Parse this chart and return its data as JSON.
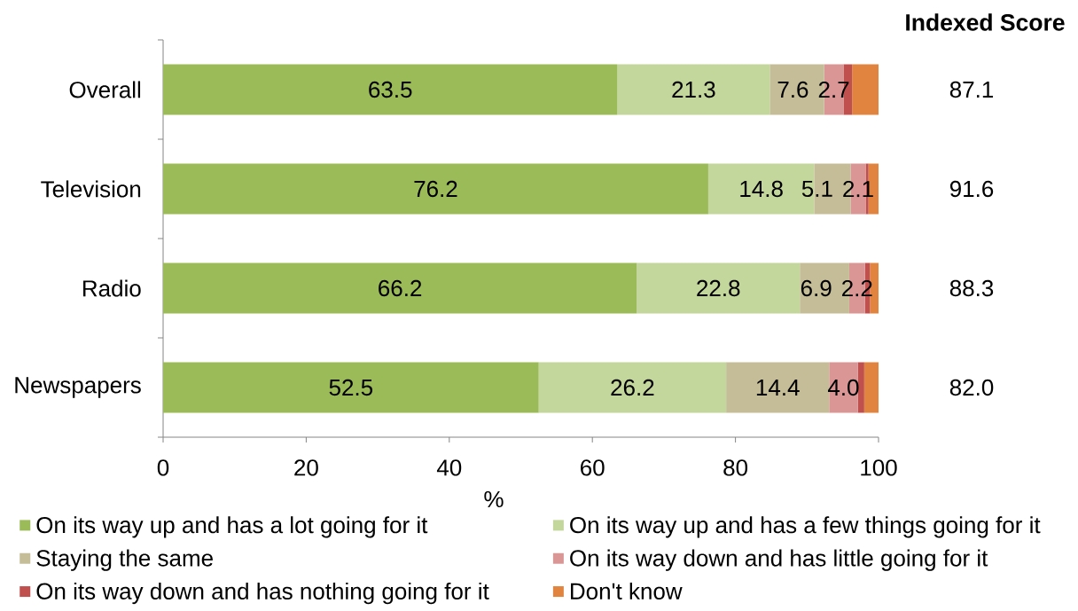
{
  "chart_data": {
    "type": "bar",
    "orientation": "horizontal",
    "stacked": true,
    "categories": [
      "Overall",
      "Television",
      "Radio",
      "Newspapers"
    ],
    "xlabel": "%",
    "xlim": [
      0,
      100
    ],
    "xticks": [
      0,
      20,
      40,
      60,
      80,
      100
    ],
    "series": [
      {
        "name": "On its way up and has a lot going for it",
        "color": "#9bbb59",
        "values": [
          63.5,
          76.2,
          66.2,
          52.5
        ],
        "value_labels": [
          "63.5",
          "76.2",
          "66.2",
          "52.5"
        ]
      },
      {
        "name": "On its way up and has a few things going for it",
        "color": "#c3d69b",
        "values": [
          21.3,
          14.8,
          22.8,
          26.2
        ],
        "value_labels": [
          "21.3",
          "14.8",
          "22.8",
          "26.2"
        ]
      },
      {
        "name": "Staying the same",
        "color": "#c4bd97",
        "values": [
          7.6,
          5.1,
          6.9,
          14.4
        ],
        "value_labels": [
          "7.6",
          "5.1",
          "6.9",
          "14.4"
        ]
      },
      {
        "name": "On its way down and has little going for it",
        "color": "#d99694",
        "values": [
          2.7,
          2.1,
          2.2,
          4.0
        ],
        "value_labels": [
          "2.7",
          "2.1",
          "2.2",
          "4.0"
        ]
      },
      {
        "name": "On its way down and has nothing going for it",
        "color": "#c0504d",
        "values": [
          1.2,
          0.4,
          0.7,
          0.9
        ]
      },
      {
        "name": "Don't know",
        "color": "#e0843f",
        "values": [
          3.7,
          1.4,
          1.2,
          2.0
        ]
      }
    ],
    "annotations": [
      "Indexed Score",
      "87.1",
      "91.6",
      "88.3",
      "82.0"
    ],
    "legend": "bottom"
  }
}
